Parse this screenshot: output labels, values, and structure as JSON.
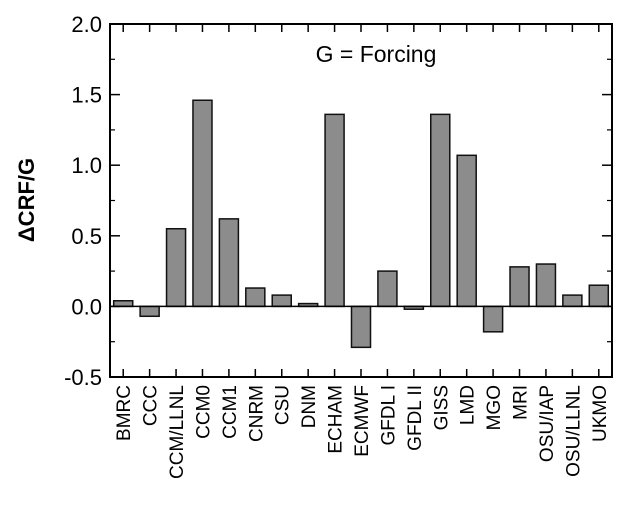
{
  "chart_data": {
    "type": "bar",
    "title": "",
    "xlabel": "",
    "ylabel": "ΔCRF/G",
    "annotation": "G = Forcing",
    "ylim": [
      -0.5,
      2.0
    ],
    "yticks": [
      "2.0",
      "1.5",
      "1.0",
      "0.5",
      "0.0",
      "-0.5"
    ],
    "categories": [
      "BMRC",
      "CCC",
      "CCM/LLNL",
      "CCM0",
      "CCM1",
      "CNRM",
      "CSU",
      "DNM",
      "ECHAM",
      "ECMWF",
      "GFDL I",
      "GFDL II",
      "GISS",
      "LMD",
      "MGO",
      "MRI",
      "OSU/IAP",
      "OSU/LLNL",
      "UKMO"
    ],
    "values": [
      0.04,
      -0.07,
      0.55,
      1.46,
      0.62,
      0.13,
      0.08,
      0.02,
      1.36,
      -0.29,
      0.25,
      -0.02,
      1.36,
      1.07,
      -0.18,
      0.28,
      0.3,
      0.08,
      0.15
    ],
    "grid": false,
    "bar_color": "#8c8c8c"
  }
}
